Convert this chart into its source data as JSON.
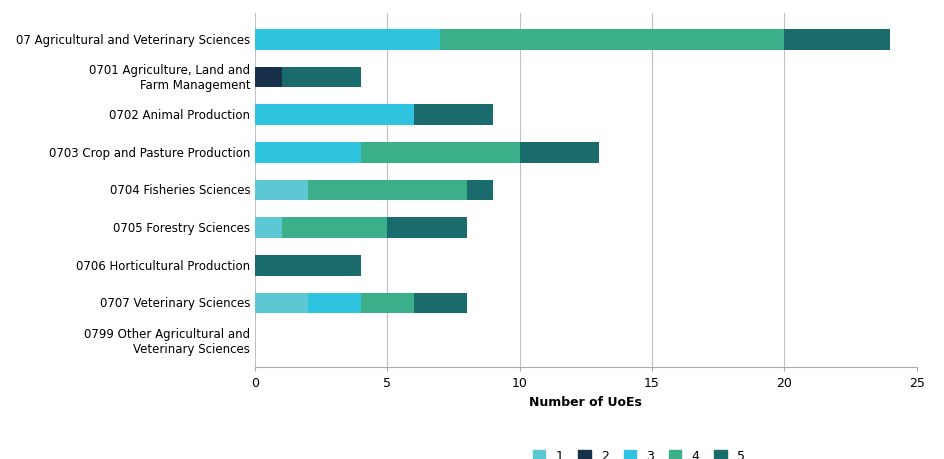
{
  "categories": [
    "07 Agricultural and Veterinary Sciences",
    "0701 Agriculture, Land and\nFarm Management",
    "0702 Animal Production",
    "0703 Crop and Pasture Production",
    "0704 Fisheries Sciences",
    "0705 Forestry Sciences",
    "0706 Horticultural Production",
    "0707 Veterinary Sciences",
    "0799 Other Agricultural and\nVeterinary Sciences"
  ],
  "ratings": [
    "1",
    "2",
    "3",
    "4",
    "5"
  ],
  "colors": [
    "#5BC8D4",
    "#17314A",
    "#2EC4E0",
    "#3AAF8A",
    "#1A6B6B"
  ],
  "data": {
    "1": [
      0,
      0,
      0,
      0,
      2,
      1,
      0,
      2,
      0
    ],
    "2": [
      0,
      1,
      0,
      0,
      0,
      0,
      0,
      0,
      0
    ],
    "3": [
      7,
      0,
      6,
      4,
      0,
      0,
      0,
      2,
      0
    ],
    "4": [
      13,
      0,
      0,
      6,
      6,
      4,
      0,
      2,
      0
    ],
    "5": [
      4,
      3,
      3,
      3,
      1,
      3,
      4,
      2,
      0
    ]
  },
  "xlim": [
    0,
    25
  ],
  "xticks": [
    0,
    5,
    10,
    15,
    20,
    25
  ],
  "xlabel": "Number of UoEs",
  "background_color": "#ffffff",
  "grid_color": "#c0c0c0",
  "bar_height": 0.55,
  "label_fontsize": 9,
  "tick_fontsize": 9,
  "legend_fontsize": 9,
  "ytick_fontsize": 8.5
}
